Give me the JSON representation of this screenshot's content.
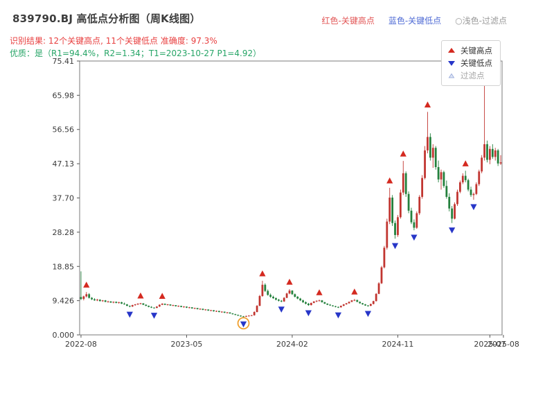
{
  "header": {
    "title": "839790.BJ 高低点分析图（周K线图）",
    "legend_inline": [
      {
        "label": "红色-关键高点",
        "color": "#e25555"
      },
      {
        "label": "蓝色-关键低点",
        "color": "#4f6bd5"
      },
      {
        "label": "○浅色-过滤点",
        "color": "#9a9a9a"
      }
    ],
    "result_line": "识别结果: 12个关键高点, 11个关键低点  准确度: 97.3%",
    "quality_line": "优质：是（R1=94.4%，R2=1.34；T1=2023-10-27 P1=4.92）"
  },
  "chart_data": {
    "type": "candlestick",
    "title": "839790.BJ 高低点分析图（周K线图）",
    "x_axis": "weekly candles from 2022-08 to 2025-08",
    "ylim": [
      0,
      75.41
    ],
    "yticks": [
      0,
      9.426,
      18.85,
      28.28,
      37.7,
      47.13,
      56.56,
      65.98,
      75.41
    ],
    "ytick_labels": [
      "0.000",
      "9.426",
      "18.85",
      "28.28",
      "37.70",
      "47.13",
      "56.56",
      "65.98",
      "75.41"
    ],
    "xticks": [
      {
        "week": 0,
        "label": "2022-08"
      },
      {
        "week": 39,
        "label": "2023-05"
      },
      {
        "week": 78,
        "label": "2024-02"
      },
      {
        "week": 117,
        "label": "2024-11"
      },
      {
        "week": 151,
        "label": "2025-07"
      },
      {
        "week": 156,
        "label": "2025-08"
      }
    ],
    "colors": {
      "up": "#c13530",
      "down": "#23803c",
      "key_high": "#d42a20",
      "key_low": "#2736c8",
      "filtered_fill": "#dfe6f5",
      "filtered_stroke": "#9fb0dd",
      "circle": "#f0a030"
    },
    "legend": [
      {
        "label": "关键高点",
        "marker": "up-triangle",
        "color": "#d42a20"
      },
      {
        "label": "关键低点",
        "marker": "down-triangle",
        "color": "#2736c8"
      },
      {
        "label": "过滤点",
        "marker": "up-triangle-light",
        "color": "#dfe6f5"
      }
    ],
    "key_highs": [
      [
        2,
        11.8
      ],
      [
        22,
        8.8
      ],
      [
        30,
        8.7
      ],
      [
        67,
        14.9
      ],
      [
        77,
        12.6
      ],
      [
        88,
        9.7
      ],
      [
        101,
        9.9
      ],
      [
        114,
        40.5
      ],
      [
        119,
        47.9
      ],
      [
        128,
        61.4
      ],
      [
        142,
        45.2
      ],
      [
        149,
        68.9
      ]
    ],
    "key_lows": [
      [
        18,
        7.6
      ],
      [
        27,
        7.3
      ],
      [
        60,
        4.92
      ],
      [
        74,
        9.0
      ],
      [
        84,
        8.0
      ],
      [
        95,
        7.4
      ],
      [
        106,
        7.8
      ],
      [
        116,
        26.5
      ],
      [
        123,
        28.8
      ],
      [
        137,
        30.8
      ],
      [
        145,
        37.2
      ]
    ],
    "circled_point": {
      "week": 60,
      "price": 4.92,
      "note": "T1=2023-10-27 P1=4.92"
    },
    "candles_ohlc": [
      [
        10.4,
        17.5,
        9.6,
        9.9
      ],
      [
        9.9,
        10.8,
        9.5,
        10.6
      ],
      [
        10.6,
        11.8,
        10.3,
        11.2
      ],
      [
        11.2,
        11.5,
        10.0,
        10.2
      ],
      [
        10.2,
        10.4,
        9.6,
        9.8
      ],
      [
        9.8,
        10.1,
        9.4,
        9.5
      ],
      [
        9.5,
        9.9,
        9.3,
        9.7
      ],
      [
        9.7,
        9.8,
        9.2,
        9.3
      ],
      [
        9.3,
        9.6,
        9.1,
        9.5
      ],
      [
        9.5,
        9.6,
        9.0,
        9.1
      ],
      [
        9.1,
        9.4,
        8.9,
        9.2
      ],
      [
        9.2,
        9.3,
        8.8,
        8.9
      ],
      [
        8.9,
        9.2,
        8.7,
        9.1
      ],
      [
        9.1,
        9.2,
        8.7,
        8.8
      ],
      [
        8.8,
        9.1,
        8.6,
        9.0
      ],
      [
        9.0,
        9.1,
        8.5,
        8.6
      ],
      [
        8.6,
        8.9,
        8.3,
        8.4
      ],
      [
        8.4,
        8.5,
        7.9,
        8.0
      ],
      [
        8.0,
        8.1,
        7.6,
        7.8
      ],
      [
        7.8,
        8.3,
        7.7,
        8.2
      ],
      [
        8.2,
        8.5,
        8.0,
        8.4
      ],
      [
        8.4,
        8.7,
        8.2,
        8.6
      ],
      [
        8.6,
        8.8,
        8.4,
        8.7
      ],
      [
        8.7,
        8.7,
        8.2,
        8.3
      ],
      [
        8.3,
        8.4,
        7.9,
        8.0
      ],
      [
        8.0,
        8.1,
        7.6,
        7.7
      ],
      [
        7.7,
        7.9,
        7.4,
        7.5
      ],
      [
        7.5,
        7.6,
        7.3,
        7.4
      ],
      [
        7.4,
        7.9,
        7.4,
        7.8
      ],
      [
        7.8,
        8.4,
        7.7,
        8.3
      ],
      [
        8.3,
        8.7,
        8.2,
        8.6
      ],
      [
        8.6,
        8.6,
        8.2,
        8.3
      ],
      [
        8.3,
        8.5,
        8.1,
        8.4
      ],
      [
        8.4,
        8.4,
        8.0,
        8.1
      ],
      [
        8.1,
        8.3,
        7.9,
        8.2
      ],
      [
        8.2,
        8.2,
        7.8,
        7.9
      ],
      [
        7.9,
        8.1,
        7.7,
        8.0
      ],
      [
        8.0,
        8.0,
        7.6,
        7.7
      ],
      [
        7.7,
        7.9,
        7.5,
        7.8
      ],
      [
        7.8,
        7.8,
        7.4,
        7.5
      ],
      [
        7.5,
        7.7,
        7.3,
        7.6
      ],
      [
        7.6,
        7.6,
        7.2,
        7.3
      ],
      [
        7.3,
        7.5,
        7.1,
        7.4
      ],
      [
        7.4,
        7.4,
        7.0,
        7.1
      ],
      [
        7.1,
        7.3,
        6.9,
        7.2
      ],
      [
        7.2,
        7.2,
        6.8,
        6.9
      ],
      [
        6.9,
        7.1,
        6.7,
        7.0
      ],
      [
        7.0,
        7.0,
        6.6,
        6.7
      ],
      [
        6.7,
        6.9,
        6.5,
        6.8
      ],
      [
        6.8,
        6.8,
        6.4,
        6.5
      ],
      [
        6.5,
        6.7,
        6.3,
        6.6
      ],
      [
        6.6,
        6.6,
        6.2,
        6.3
      ],
      [
        6.3,
        6.5,
        6.1,
        6.4
      ],
      [
        6.4,
        6.4,
        6.0,
        6.1
      ],
      [
        6.1,
        6.3,
        5.9,
        6.2
      ],
      [
        6.2,
        6.2,
        5.8,
        5.9
      ],
      [
        5.9,
        6.0,
        5.6,
        5.7
      ],
      [
        5.7,
        5.8,
        5.4,
        5.5
      ],
      [
        5.5,
        5.6,
        5.2,
        5.3
      ],
      [
        5.3,
        5.4,
        5.0,
        5.1
      ],
      [
        5.1,
        5.2,
        4.92,
        5.0
      ],
      [
        5.0,
        5.3,
        4.95,
        5.2
      ],
      [
        5.2,
        5.4,
        5.1,
        5.3
      ],
      [
        5.3,
        5.5,
        5.2,
        5.4
      ],
      [
        5.4,
        6.5,
        5.3,
        6.3
      ],
      [
        6.3,
        8.2,
        6.2,
        8.0
      ],
      [
        8.0,
        11.0,
        7.9,
        10.7
      ],
      [
        10.7,
        14.9,
        10.5,
        13.8
      ],
      [
        13.8,
        14.2,
        11.8,
        12.1
      ],
      [
        12.1,
        12.5,
        10.8,
        11.0
      ],
      [
        11.0,
        11.4,
        10.2,
        10.5
      ],
      [
        10.5,
        10.8,
        9.9,
        10.1
      ],
      [
        10.1,
        10.3,
        9.5,
        9.7
      ],
      [
        9.7,
        9.9,
        9.2,
        9.4
      ],
      [
        9.4,
        9.6,
        9.0,
        9.2
      ],
      [
        9.2,
        10.4,
        9.1,
        10.2
      ],
      [
        10.2,
        11.6,
        10.1,
        11.4
      ],
      [
        11.4,
        12.6,
        11.2,
        12.2
      ],
      [
        12.2,
        12.3,
        11.0,
        11.2
      ],
      [
        11.2,
        11.4,
        10.3,
        10.5
      ],
      [
        10.5,
        10.7,
        9.8,
        10.0
      ],
      [
        10.0,
        10.2,
        9.3,
        9.5
      ],
      [
        9.5,
        9.7,
        8.8,
        9.0
      ],
      [
        9.0,
        9.2,
        8.4,
        8.6
      ],
      [
        8.6,
        8.8,
        8.0,
        8.2
      ],
      [
        8.2,
        8.9,
        8.1,
        8.8
      ],
      [
        8.8,
        9.3,
        8.7,
        9.2
      ],
      [
        9.2,
        9.5,
        9.0,
        9.4
      ],
      [
        9.4,
        9.7,
        9.2,
        9.5
      ],
      [
        9.5,
        9.6,
        8.9,
        9.0
      ],
      [
        9.0,
        9.1,
        8.5,
        8.6
      ],
      [
        8.6,
        8.7,
        8.2,
        8.3
      ],
      [
        8.3,
        8.5,
        8.0,
        8.1
      ],
      [
        8.1,
        8.2,
        7.8,
        7.9
      ],
      [
        7.9,
        8.0,
        7.6,
        7.7
      ],
      [
        7.7,
        7.8,
        7.4,
        7.6
      ],
      [
        7.6,
        8.1,
        7.5,
        8.0
      ],
      [
        8.0,
        8.5,
        7.9,
        8.4
      ],
      [
        8.4,
        8.8,
        8.3,
        8.7
      ],
      [
        8.7,
        9.2,
        8.6,
        9.1
      ],
      [
        9.1,
        9.6,
        9.0,
        9.5
      ],
      [
        9.5,
        9.9,
        9.3,
        9.6
      ],
      [
        9.6,
        9.7,
        9.0,
        9.1
      ],
      [
        9.1,
        9.2,
        8.6,
        8.7
      ],
      [
        8.7,
        8.8,
        8.3,
        8.4
      ],
      [
        8.4,
        8.5,
        8.0,
        8.1
      ],
      [
        8.1,
        8.2,
        7.8,
        8.0
      ],
      [
        8.0,
        8.6,
        7.9,
        8.5
      ],
      [
        8.5,
        9.4,
        8.4,
        9.3
      ],
      [
        9.3,
        11.5,
        9.2,
        11.3
      ],
      [
        11.3,
        14.5,
        11.2,
        14.2
      ],
      [
        14.2,
        19.0,
        14.0,
        18.6
      ],
      [
        18.6,
        24.5,
        18.3,
        24.0
      ],
      [
        24.0,
        32.0,
        23.5,
        31.2
      ],
      [
        31.2,
        40.5,
        30.5,
        37.8
      ],
      [
        37.8,
        38.5,
        30.0,
        30.8
      ],
      [
        30.8,
        31.5,
        26.5,
        27.5
      ],
      [
        27.5,
        33.0,
        27.0,
        32.4
      ],
      [
        32.4,
        40.0,
        32.0,
        39.2
      ],
      [
        39.2,
        47.9,
        38.5,
        44.5
      ],
      [
        44.5,
        45.0,
        38.0,
        38.8
      ],
      [
        38.8,
        39.5,
        33.5,
        34.2
      ],
      [
        34.2,
        35.0,
        30.5,
        31.0
      ],
      [
        31.0,
        31.8,
        28.8,
        29.5
      ],
      [
        29.5,
        34.0,
        29.2,
        33.5
      ],
      [
        33.5,
        38.5,
        33.0,
        38.0
      ],
      [
        38.0,
        44.0,
        37.5,
        43.2
      ],
      [
        43.2,
        52.0,
        42.8,
        50.8
      ],
      [
        50.8,
        61.4,
        50.0,
        54.5
      ],
      [
        54.5,
        55.5,
        48.0,
        48.8
      ],
      [
        48.8,
        52.5,
        46.0,
        51.5
      ],
      [
        51.5,
        52.0,
        45.5,
        46.2
      ],
      [
        46.2,
        48.0,
        42.0,
        42.8
      ],
      [
        42.8,
        45.5,
        40.0,
        44.8
      ],
      [
        44.8,
        45.2,
        40.5,
        41.0
      ],
      [
        41.0,
        42.5,
        37.5,
        38.0
      ],
      [
        38.0,
        39.0,
        34.0,
        34.8
      ],
      [
        34.8,
        35.5,
        30.8,
        32.0
      ],
      [
        32.0,
        36.5,
        31.8,
        36.0
      ],
      [
        36.0,
        40.0,
        35.5,
        39.4
      ],
      [
        39.4,
        42.5,
        39.0,
        42.0
      ],
      [
        42.0,
        44.5,
        41.5,
        43.8
      ],
      [
        43.8,
        45.2,
        42.0,
        42.6
      ],
      [
        42.6,
        43.0,
        39.5,
        40.0
      ],
      [
        40.0,
        40.8,
        38.0,
        38.5
      ],
      [
        38.5,
        39.2,
        37.2,
        38.8
      ],
      [
        38.8,
        42.0,
        38.5,
        41.5
      ],
      [
        41.5,
        45.5,
        41.0,
        45.0
      ],
      [
        45.0,
        49.5,
        44.5,
        48.8
      ],
      [
        48.8,
        68.9,
        48.0,
        52.5
      ],
      [
        52.5,
        53.5,
        47.5,
        48.2
      ],
      [
        48.2,
        52.0,
        47.0,
        51.2
      ],
      [
        51.2,
        52.5,
        48.5,
        49.0
      ],
      [
        49.0,
        51.5,
        48.0,
        50.8
      ],
      [
        50.8,
        51.2,
        46.5,
        47.2
      ],
      [
        47.2,
        49.5,
        46.8,
        47.5
      ]
    ]
  }
}
